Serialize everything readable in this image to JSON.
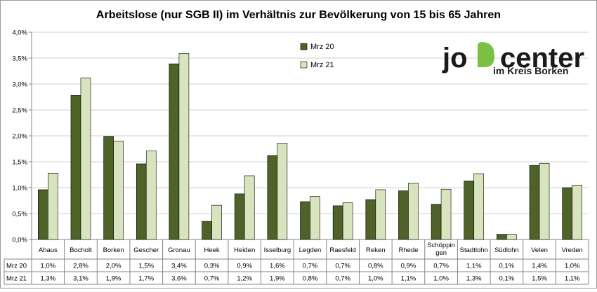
{
  "chart_data": {
    "type": "bar",
    "title": "Arbeitslose (nur SGB II) im Verhältnis zur Bevölkerung von 15 bis 65 Jahren",
    "xlabel": "",
    "ylabel": "",
    "ylim": [
      0,
      4.0
    ],
    "y_ticks": [
      "0,0%",
      "0,5%",
      "1,0%",
      "1,5%",
      "2,0%",
      "2,5%",
      "3,0%",
      "3,5%",
      "4,0%"
    ],
    "y_tick_values": [
      0,
      0.5,
      1.0,
      1.5,
      2.0,
      2.5,
      3.0,
      3.5,
      4.0
    ],
    "legend_placement": "top-center",
    "grid": true,
    "categories": [
      [
        "Ahaus"
      ],
      [
        "Bocholt"
      ],
      [
        "Borken"
      ],
      [
        "Gescher"
      ],
      [
        "Gronau"
      ],
      [
        "Heek"
      ],
      [
        "Heiden"
      ],
      [
        "Isselburg"
      ],
      [
        "Legden"
      ],
      [
        "Raesfeld"
      ],
      [
        "Reken"
      ],
      [
        "Rhede"
      ],
      [
        "Schöppin",
        "gen"
      ],
      [
        "Stadtlohn"
      ],
      [
        "Südlohn"
      ],
      [
        "Velen"
      ],
      [
        "Vreden"
      ]
    ],
    "series": [
      {
        "name": "Mrz 20",
        "color": "#4f6228",
        "values": [
          0.96,
          2.78,
          1.99,
          1.46,
          3.39,
          0.35,
          0.88,
          1.62,
          0.73,
          0.65,
          0.77,
          0.94,
          0.68,
          1.13,
          0.1,
          1.43,
          1.0
        ],
        "table_labels": [
          "1,0%",
          "2,8%",
          "2,0%",
          "1,5%",
          "3,4%",
          "0,3%",
          "0,9%",
          "1,6%",
          "0,7%",
          "0,7%",
          "0,8%",
          "0,9%",
          "0,7%",
          "1,1%",
          "0,1%",
          "1,4%",
          "1,0%"
        ]
      },
      {
        "name": "Mrz 21",
        "color": "#d7e4bd",
        "values": [
          1.28,
          3.12,
          1.9,
          1.71,
          3.59,
          0.66,
          1.23,
          1.86,
          0.83,
          0.71,
          0.96,
          1.09,
          0.97,
          1.27,
          0.1,
          1.47,
          1.05
        ],
        "table_labels": [
          "1,3%",
          "3,1%",
          "1,9%",
          "1,7%",
          "3,6%",
          "0,7%",
          "1,2%",
          "1,9%",
          "0,8%",
          "0,7%",
          "1,0%",
          "1,1%",
          "1,0%",
          "1,3%",
          "0,1%",
          "1,5%",
          "1,1%"
        ]
      }
    ]
  },
  "logo": {
    "text_jo": "jo",
    "text_center": "center",
    "subtitle": "im Kreis Borken",
    "accent": "#7ac143",
    "ink": "#1a1a1a"
  },
  "colors": {
    "axis": "#868686",
    "grid": "#d0d0d0",
    "text": "#000000"
  }
}
